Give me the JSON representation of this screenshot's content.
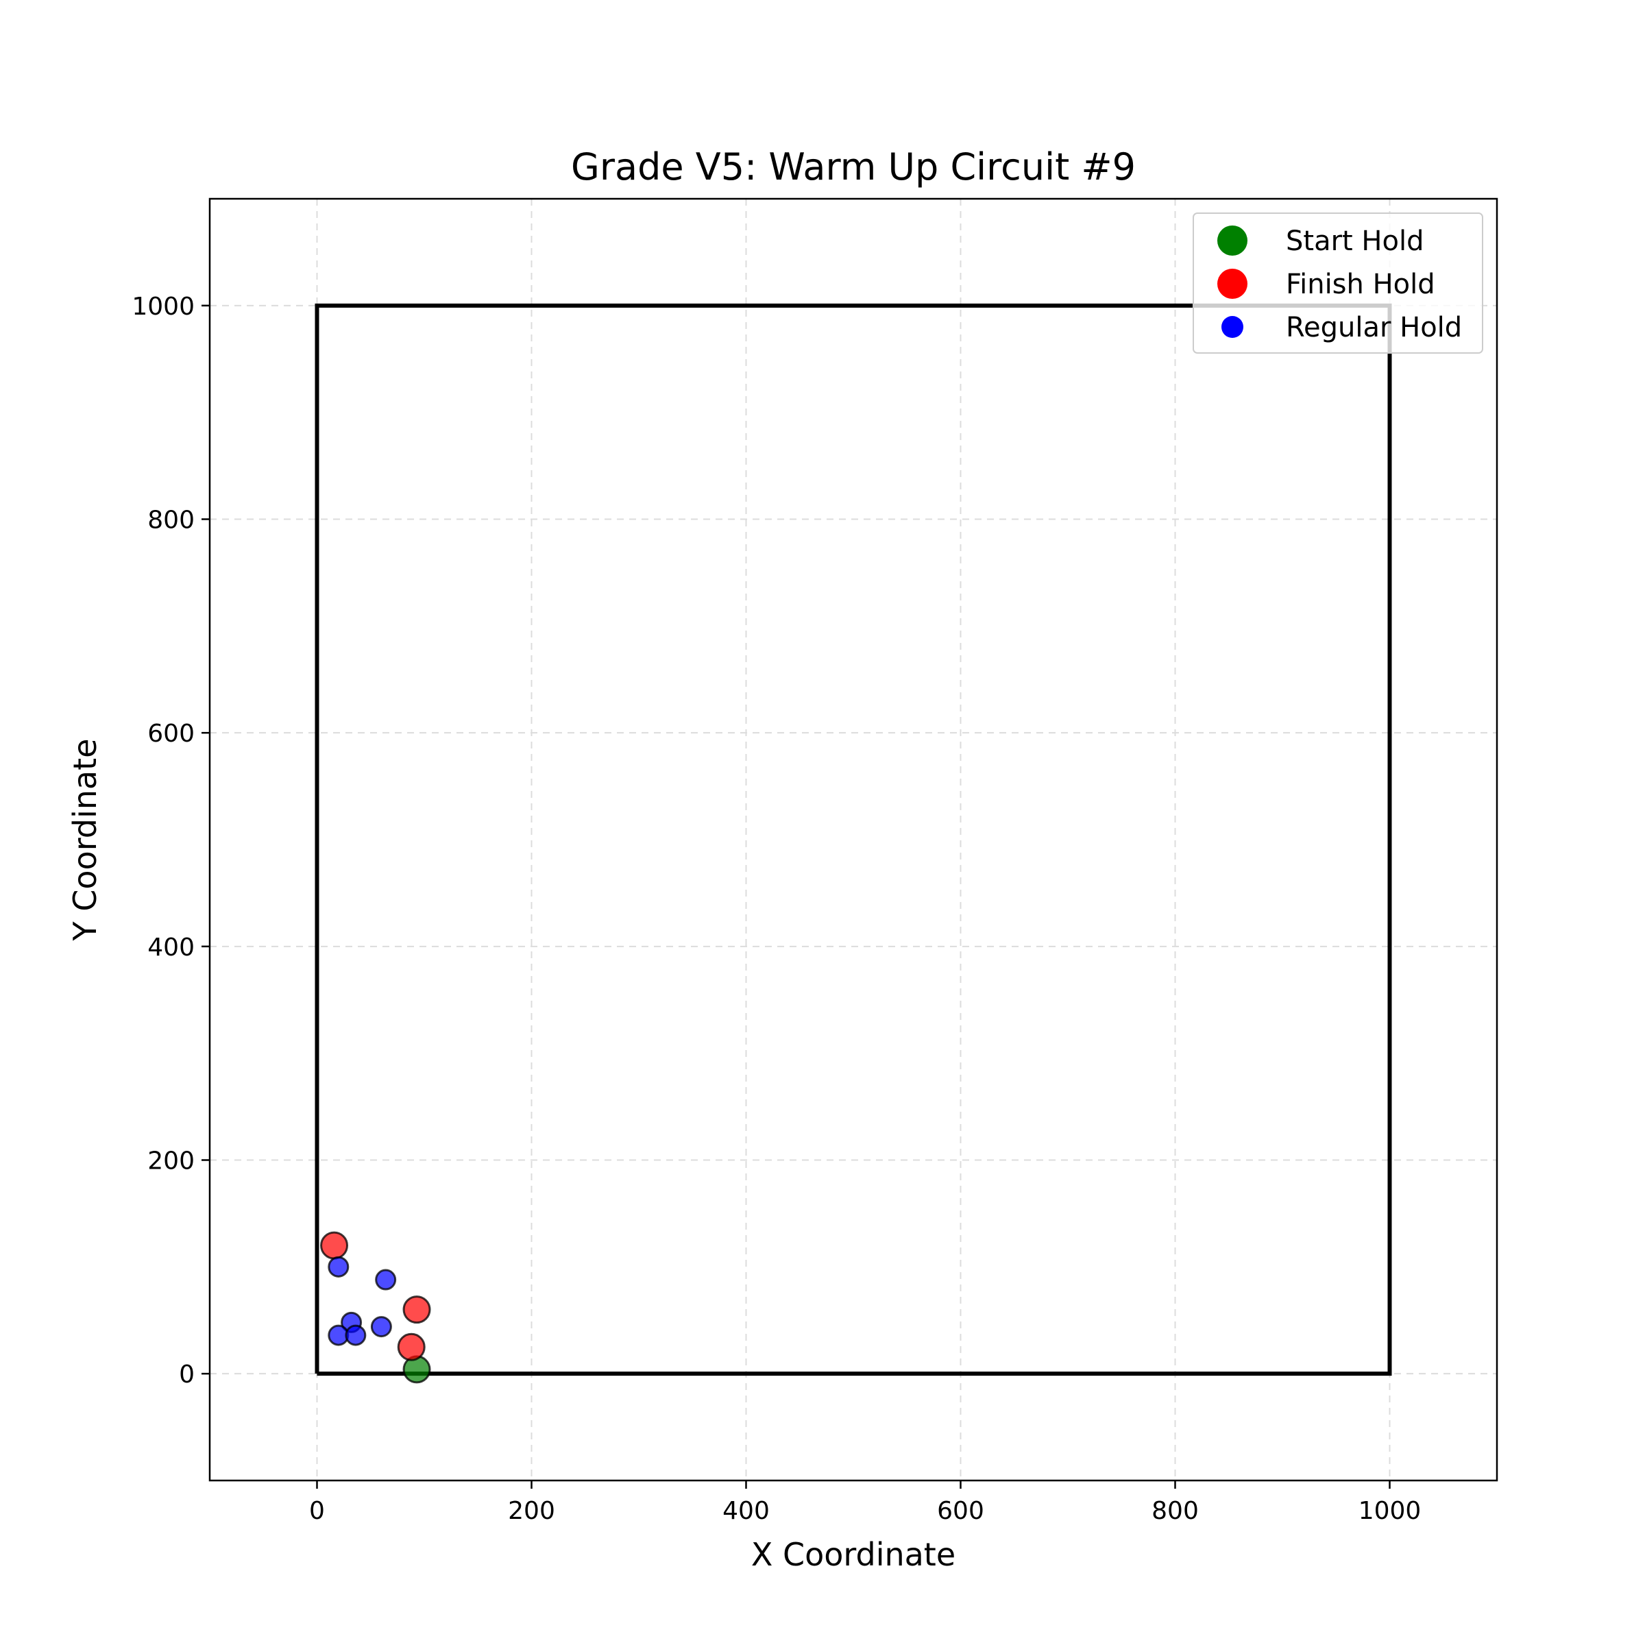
{
  "chart_data": {
    "type": "scatter",
    "title": "Grade V5: Warm Up Circuit #9",
    "xlabel": "X Coordinate",
    "ylabel": "Y Coordinate",
    "xlim": [
      -100,
      1100
    ],
    "ylim": [
      -100,
      1100
    ],
    "xticks": [
      0,
      200,
      400,
      600,
      800,
      1000
    ],
    "yticks": [
      0,
      200,
      400,
      600,
      800,
      1000
    ],
    "grid": true,
    "legend_position": "top-right",
    "wall_outline": [
      [
        0,
        0
      ],
      [
        1000,
        0
      ],
      [
        1000,
        1000
      ],
      [
        0,
        1000
      ],
      [
        0,
        0
      ]
    ],
    "series": [
      {
        "name": "Start Hold",
        "color": "#008000",
        "size": "large",
        "points": [
          [
            93,
            4
          ]
        ]
      },
      {
        "name": "Finish Hold",
        "color": "#ff0000",
        "size": "large",
        "points": [
          [
            16,
            120
          ],
          [
            93,
            60
          ],
          [
            88,
            25
          ]
        ]
      },
      {
        "name": "Regular Hold",
        "color": "#0000ff",
        "size": "small",
        "points": [
          [
            20,
            100
          ],
          [
            64,
            88
          ],
          [
            32,
            48
          ],
          [
            20,
            36
          ],
          [
            36,
            36
          ],
          [
            60,
            44
          ]
        ]
      }
    ]
  }
}
